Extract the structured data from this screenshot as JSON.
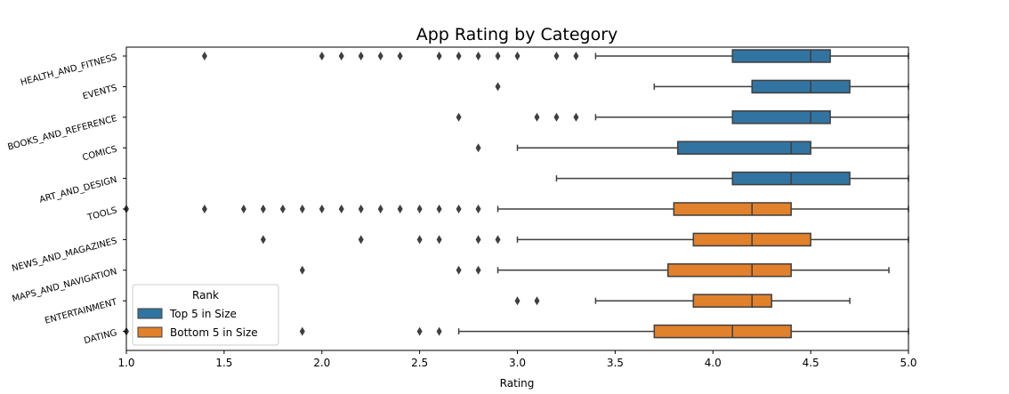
{
  "chart_data": {
    "type": "box",
    "title": "App Rating by Category",
    "xlabel": "Rating",
    "ylabel": "",
    "xlim": [
      1.0,
      5.0
    ],
    "xticks": [
      "1.0",
      "1.5",
      "2.0",
      "2.5",
      "3.0",
      "3.5",
      "4.0",
      "4.5",
      "5.0"
    ],
    "orientation": "horizontal",
    "grid": false,
    "legend": {
      "title": "Rank",
      "placement": "lower-left",
      "entries": [
        {
          "name": "Top 5 in Size",
          "color": "#3274a1"
        },
        {
          "name": "Bottom 5 in Size",
          "color": "#e1812c"
        }
      ]
    },
    "categories": [
      {
        "name": "HEALTH_AND_FITNESS",
        "group": 0,
        "whisker_low": 3.4,
        "q1": 4.1,
        "median": 4.5,
        "q3": 4.6,
        "whisker_high": 5.0,
        "outliers": [
          1.4,
          2.0,
          2.1,
          2.2,
          2.3,
          2.4,
          2.6,
          2.7,
          2.8,
          2.9,
          3.0,
          3.2,
          3.3
        ]
      },
      {
        "name": "EVENTS",
        "group": 0,
        "whisker_low": 3.7,
        "q1": 4.2,
        "median": 4.5,
        "q3": 4.7,
        "whisker_high": 5.0,
        "outliers": [
          2.9
        ]
      },
      {
        "name": "BOOKS_AND_REFERENCE",
        "group": 0,
        "whisker_low": 3.4,
        "q1": 4.1,
        "median": 4.5,
        "q3": 4.6,
        "whisker_high": 5.0,
        "outliers": [
          2.7,
          3.1,
          3.2,
          3.3
        ]
      },
      {
        "name": "COMICS",
        "group": 0,
        "whisker_low": 3.0,
        "q1": 3.82,
        "median": 4.4,
        "q3": 4.5,
        "whisker_high": 5.0,
        "outliers": [
          2.8
        ]
      },
      {
        "name": "ART_AND_DESIGN",
        "group": 0,
        "whisker_low": 3.2,
        "q1": 4.1,
        "median": 4.4,
        "q3": 4.7,
        "whisker_high": 5.0,
        "outliers": []
      },
      {
        "name": "TOOLS",
        "group": 1,
        "whisker_low": 2.9,
        "q1": 3.8,
        "median": 4.2,
        "q3": 4.4,
        "whisker_high": 5.0,
        "outliers": [
          1.0,
          1.4,
          1.6,
          1.7,
          1.8,
          1.9,
          2.0,
          2.1,
          2.2,
          2.3,
          2.4,
          2.5,
          2.6,
          2.7,
          2.8
        ]
      },
      {
        "name": "NEWS_AND_MAGAZINES",
        "group": 1,
        "whisker_low": 3.0,
        "q1": 3.9,
        "median": 4.2,
        "q3": 4.5,
        "whisker_high": 5.0,
        "outliers": [
          1.7,
          2.2,
          2.5,
          2.6,
          2.8,
          2.9
        ]
      },
      {
        "name": "MAPS_AND_NAVIGATION",
        "group": 1,
        "whisker_low": 2.9,
        "q1": 3.77,
        "median": 4.2,
        "q3": 4.4,
        "whisker_high": 4.9,
        "outliers": [
          1.9,
          2.7,
          2.8
        ]
      },
      {
        "name": "ENTERTAINMENT",
        "group": 1,
        "whisker_low": 3.4,
        "q1": 3.9,
        "median": 4.2,
        "q3": 4.3,
        "whisker_high": 4.7,
        "outliers": [
          3.0,
          3.1
        ]
      },
      {
        "name": "DATING",
        "group": 1,
        "whisker_low": 2.7,
        "q1": 3.7,
        "median": 4.1,
        "q3": 4.4,
        "whisker_high": 5.0,
        "outliers": [
          1.0,
          1.9,
          2.5,
          2.6
        ]
      }
    ]
  }
}
